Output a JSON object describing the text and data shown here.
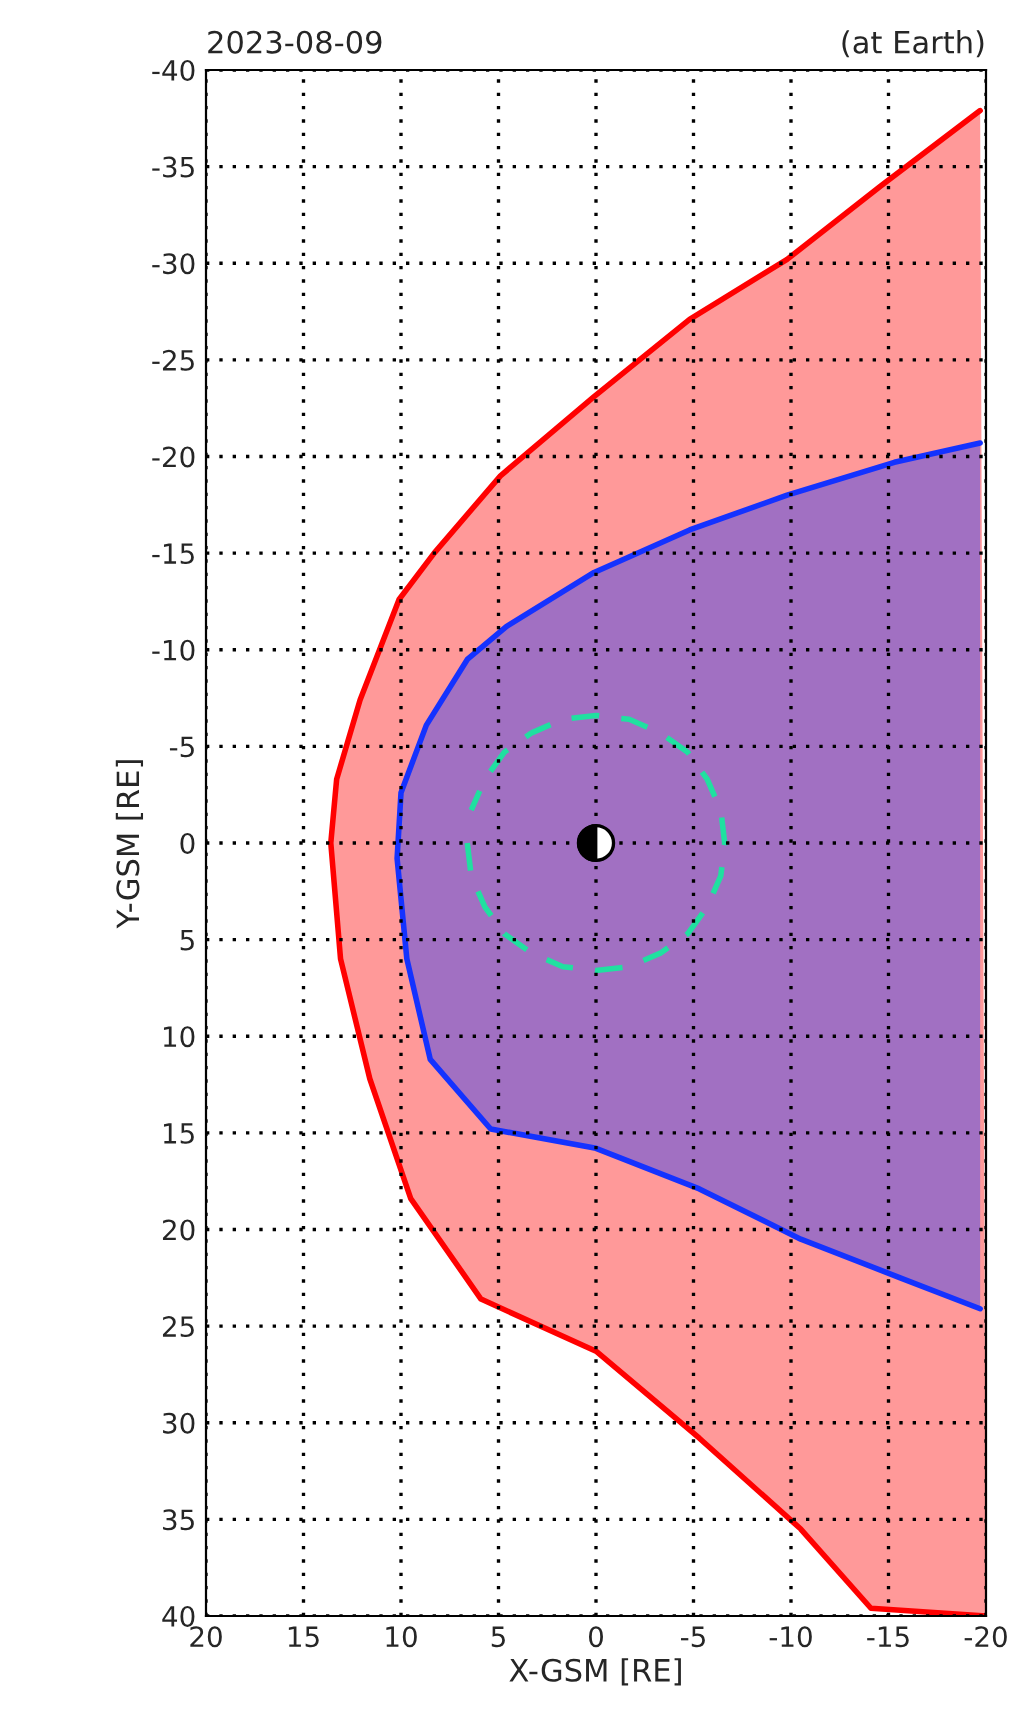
{
  "chart_data": {
    "type": "line",
    "title": "2023-08-09",
    "annotations": [
      "(at Earth)"
    ],
    "xlabel": "X-GSM [RE]",
    "ylabel": "Y-GSM [RE]",
    "xlim": [
      20,
      -20
    ],
    "xticks": [
      20,
      15,
      10,
      5,
      0,
      -5,
      -10,
      -15,
      -20
    ],
    "ylim": [
      40,
      -40
    ],
    "yticks": [
      -40,
      -35,
      -30,
      -25,
      -20,
      -15,
      -10,
      -5,
      0,
      5,
      10,
      15,
      20,
      25,
      30,
      35,
      40
    ],
    "grid": true,
    "legend": false,
    "series": [
      {
        "type": "area",
        "color": "#ff0000",
        "x": [
          -19.7,
          -14.6,
          -9.8,
          -4.8,
          0.1,
          4.9,
          8.3,
          10.1,
          12.1,
          13.3,
          13.6,
          13.1,
          11.6,
          9.5,
          5.9,
          0,
          -5.3,
          -10.5,
          -14.1,
          -20
        ],
        "values": [
          -37.9,
          -34.0,
          -30.2,
          -27.1,
          -23.1,
          -19.0,
          -15.0,
          -12.6,
          -7.4,
          -3.3,
          0,
          6,
          12.2,
          18.4,
          23.6,
          26.3,
          30.8,
          35.5,
          39.6,
          40
        ]
      },
      {
        "type": "area",
        "color": "#1432ff",
        "x": [
          -19.7,
          -15.3,
          -9.8,
          -4.8,
          0.1,
          4.6,
          6.6,
          8.7,
          10.0,
          10.2,
          9.7,
          8.5,
          5.4,
          0,
          -5.3,
          -10.5,
          -15.6,
          -19.7
        ],
        "values": [
          -20.7,
          -19.7,
          -18.0,
          -16.2,
          -14.0,
          -11.2,
          -9.5,
          -6.1,
          -2.6,
          0.8,
          6,
          11.2,
          14.8,
          15.8,
          17.9,
          20.5,
          22.5,
          24.1
        ]
      },
      {
        "type": "line",
        "color": "#20e0a0",
        "line_style": "dashed",
        "x": [
          6.6,
          6.4,
          5.7,
          4.7,
          3.3,
          1.7,
          0,
          -1.7,
          -3.3,
          -4.7,
          -5.7,
          -6.4,
          -6.6,
          -6.4,
          -5.7,
          -4.7,
          -3.3,
          -1.7,
          0,
          1.7,
          3.3,
          4.7,
          5.7,
          6.4
        ],
        "values": [
          0,
          1.7,
          3.3,
          4.7,
          5.7,
          6.4,
          6.6,
          6.4,
          5.7,
          4.7,
          3.3,
          1.7,
          0,
          -1.7,
          -3.3,
          -4.7,
          -5.7,
          -6.4,
          -6.6,
          -6.4,
          -5.7,
          -4.7,
          -3.3,
          -1.7
        ]
      }
    ]
  }
}
